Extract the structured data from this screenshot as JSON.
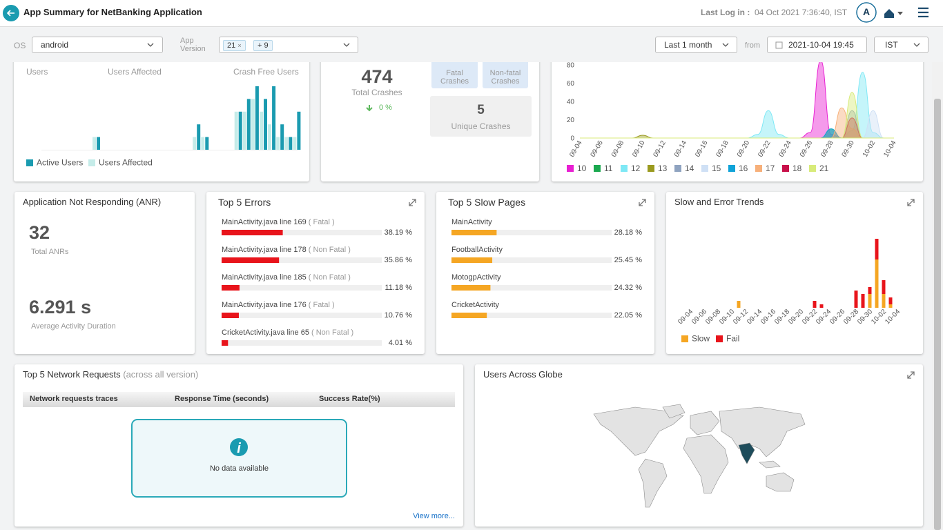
{
  "header": {
    "title": "App Summary for NetBanking Application",
    "last_login_label": "Last Log in :",
    "last_login": "04 Oct 2021 7:36:40, IST",
    "avatar": "A"
  },
  "filters": {
    "os_label": "OS",
    "os": "android",
    "version_label": "App Version",
    "version_chips": [
      "21",
      "+ 9"
    ],
    "range": "Last 1 month",
    "from_label": "from",
    "from": "2021-10-04 19:45",
    "tz": "IST"
  },
  "users_card": {
    "users_label": "Users",
    "affected_label": "Users Affected",
    "crash_free_label": "Crash Free Users",
    "chart": {
      "type": "bar",
      "series": [
        {
          "name": "Active Users",
          "color": "#1a9bb0",
          "values": [
            0,
            0,
            0,
            0,
            0,
            0,
            1,
            0,
            0,
            0,
            0,
            0,
            0,
            0,
            0,
            0,
            0,
            0,
            2,
            1,
            0,
            0,
            0,
            3,
            4,
            5,
            4,
            5,
            2,
            1,
            3
          ]
        },
        {
          "name": "Users Affected",
          "color": "#c5ece9",
          "values": [
            0,
            0,
            0,
            0,
            0,
            0,
            1,
            0,
            0,
            0,
            0,
            0,
            0,
            0,
            0,
            0,
            0,
            0,
            1,
            1,
            0,
            0,
            0,
            3,
            3,
            4,
            3,
            2,
            1,
            1,
            1
          ]
        }
      ]
    }
  },
  "crashes_card": {
    "total": 474,
    "total_label": "Total Crashes",
    "change": "0 %",
    "fatal_label": "Fatal Crashes",
    "nonfatal_label": "Non-fatal Crashes",
    "unique": 5,
    "unique_label": "Unique Crashes"
  },
  "crash_trend": {
    "type": "area",
    "x": [
      "09-04",
      "09-05",
      "09-06",
      "09-07",
      "09-08",
      "09-09",
      "09-10",
      "09-11",
      "09-12",
      "09-13",
      "09-14",
      "09-15",
      "09-16",
      "09-17",
      "09-18",
      "09-19",
      "09-20",
      "09-21",
      "09-22",
      "09-23",
      "09-24",
      "09-25",
      "09-26",
      "09-27",
      "09-28",
      "09-29",
      "09-30",
      "10-01",
      "10-02",
      "10-03",
      "10-04"
    ],
    "ylim": [
      0,
      80
    ],
    "yticks": [
      0,
      20,
      40,
      60,
      80
    ],
    "series": [
      {
        "name": "10",
        "color": "#e81fd2",
        "values": [
          0,
          0,
          0,
          0,
          0,
          0,
          0,
          0,
          0,
          0,
          0,
          0,
          0,
          0,
          0,
          0,
          0,
          0,
          0,
          0,
          0,
          0,
          6,
          85,
          4,
          0,
          0,
          0,
          0,
          0,
          0
        ]
      },
      {
        "name": "11",
        "color": "#1aa84f",
        "values": [
          0,
          0,
          0,
          0,
          0,
          0,
          0,
          0,
          0,
          0,
          0,
          0,
          0,
          0,
          0,
          0,
          0,
          0,
          0,
          0,
          0,
          0,
          0,
          0,
          10,
          0,
          0,
          0,
          0,
          0,
          0
        ]
      },
      {
        "name": "12",
        "color": "#7ee8f5",
        "values": [
          0,
          0,
          0,
          0,
          0,
          0,
          0,
          0,
          0,
          0,
          0,
          0,
          0,
          0,
          0,
          0,
          0,
          4,
          30,
          4,
          0,
          0,
          0,
          0,
          0,
          0,
          8,
          72,
          6,
          0,
          0
        ]
      },
      {
        "name": "13",
        "color": "#9a9a1f",
        "values": [
          0,
          0,
          0,
          0,
          0,
          0,
          3,
          0,
          0,
          0,
          0,
          0,
          0,
          0,
          0,
          0,
          0,
          0,
          0,
          0,
          0,
          0,
          0,
          0,
          0,
          0,
          0,
          0,
          0,
          0,
          0
        ]
      },
      {
        "name": "14",
        "color": "#8fa3c0",
        "values": [
          0,
          0,
          0,
          0,
          0,
          0,
          0,
          0,
          0,
          0,
          0,
          0,
          0,
          0,
          0,
          0,
          0,
          0,
          0,
          0,
          0,
          0,
          0,
          0,
          8,
          0,
          30,
          0,
          0,
          0,
          0
        ]
      },
      {
        "name": "15",
        "color": "#cfe0f5",
        "values": [
          0,
          0,
          0,
          0,
          0,
          0,
          0,
          0,
          0,
          0,
          0,
          0,
          0,
          0,
          0,
          0,
          0,
          0,
          0,
          0,
          0,
          0,
          0,
          0,
          0,
          0,
          0,
          0,
          30,
          0,
          0
        ]
      },
      {
        "name": "16",
        "color": "#10a3d8",
        "values": [
          0,
          0,
          0,
          0,
          0,
          0,
          0,
          0,
          0,
          0,
          0,
          0,
          0,
          0,
          0,
          0,
          0,
          0,
          0,
          0,
          0,
          0,
          0,
          0,
          10,
          0,
          0,
          0,
          0,
          0,
          0
        ]
      },
      {
        "name": "17",
        "color": "#f7b07a",
        "values": [
          0,
          0,
          0,
          0,
          0,
          0,
          0,
          0,
          0,
          0,
          0,
          0,
          0,
          0,
          0,
          0,
          0,
          0,
          0,
          0,
          0,
          0,
          0,
          0,
          0,
          33,
          10,
          0,
          0,
          0,
          0
        ]
      },
      {
        "name": "18",
        "color": "#c8104a",
        "values": [
          0,
          0,
          0,
          0,
          0,
          0,
          0,
          0,
          0,
          0,
          0,
          0,
          0,
          0,
          0,
          0,
          0,
          0,
          0,
          0,
          0,
          0,
          0,
          0,
          0,
          0,
          22,
          0,
          0,
          0,
          0
        ]
      },
      {
        "name": "21",
        "color": "#d8eb7a",
        "values": [
          0,
          0,
          0,
          0,
          0,
          0,
          0,
          0,
          0,
          0,
          0,
          0,
          0,
          0,
          0,
          0,
          0,
          0,
          0,
          0,
          0,
          0,
          0,
          0,
          0,
          0,
          50,
          0,
          0,
          0,
          0
        ]
      }
    ]
  },
  "anr": {
    "title": "Application Not Responding (ANR)",
    "total": 32,
    "total_label": "Total ANRs",
    "avg": "6.291 s",
    "avg_label": "Average Activity Duration"
  },
  "errors": {
    "title": "Top 5 Errors",
    "items": [
      {
        "name": "MainActivity.java line 169",
        "kind": "( Fatal )",
        "value": 38.19,
        "label": "38.19 %"
      },
      {
        "name": "MainActivity.java line 178",
        "kind": "( Non Fatal )",
        "value": 35.86,
        "label": "35.86 %"
      },
      {
        "name": "MainActivity.java line 185",
        "kind": "( Non Fatal )",
        "value": 11.18,
        "label": "11.18 %"
      },
      {
        "name": "MainActivity.java line 176",
        "kind": "( Fatal )",
        "value": 10.76,
        "label": "10.76 %"
      },
      {
        "name": "CricketActivity.java line 65",
        "kind": "( Non Fatal )",
        "value": 4.01,
        "label": "4.01 %"
      }
    ]
  },
  "slow_pages": {
    "title": "Top 5 Slow Pages",
    "items": [
      {
        "name": "MainActivity",
        "value": 28.18,
        "label": "28.18 %"
      },
      {
        "name": "FootballActivity",
        "value": 25.45,
        "label": "25.45 %"
      },
      {
        "name": "MotogpActivity",
        "value": 24.32,
        "label": "24.32 %"
      },
      {
        "name": "CricketActivity",
        "value": 22.05,
        "label": "22.05 %"
      }
    ]
  },
  "trends": {
    "type": "bar",
    "title": "Slow and Error Trends",
    "x": [
      "09-04",
      "09-05",
      "09-06",
      "09-07",
      "09-08",
      "09-09",
      "09-10",
      "09-11",
      "09-12",
      "09-13",
      "09-14",
      "09-15",
      "09-16",
      "09-17",
      "09-18",
      "09-19",
      "09-20",
      "09-21",
      "09-22",
      "09-23",
      "09-24",
      "09-25",
      "09-26",
      "09-27",
      "09-28",
      "09-29",
      "09-30",
      "10-01",
      "10-02",
      "10-03",
      "10-04"
    ],
    "series": [
      {
        "name": "Slow",
        "color": "#f5a623",
        "values": [
          0,
          0,
          0,
          0,
          0,
          0,
          0,
          2,
          0,
          0,
          0,
          0,
          0,
          0,
          0,
          0,
          0,
          0,
          0,
          0,
          0,
          0,
          0,
          0,
          0,
          0,
          4,
          14,
          4,
          1,
          0
        ]
      },
      {
        "name": "Fail",
        "color": "#e8141b",
        "values": [
          0,
          0,
          0,
          0,
          0,
          0,
          0,
          0,
          0,
          0,
          0,
          0,
          0,
          0,
          0,
          0,
          0,
          0,
          2,
          1,
          0,
          0,
          0,
          0,
          5,
          4,
          2,
          6,
          4,
          2,
          0
        ]
      }
    ]
  },
  "network": {
    "title": "Top 5 Network Requests",
    "subtitle": "(across all version)",
    "columns": [
      "Network requests traces",
      "Response Time (seconds)",
      "Success Rate(%)"
    ],
    "empty": "No data available",
    "more": "View more..."
  },
  "globe": {
    "title": "Users Across Globe"
  }
}
